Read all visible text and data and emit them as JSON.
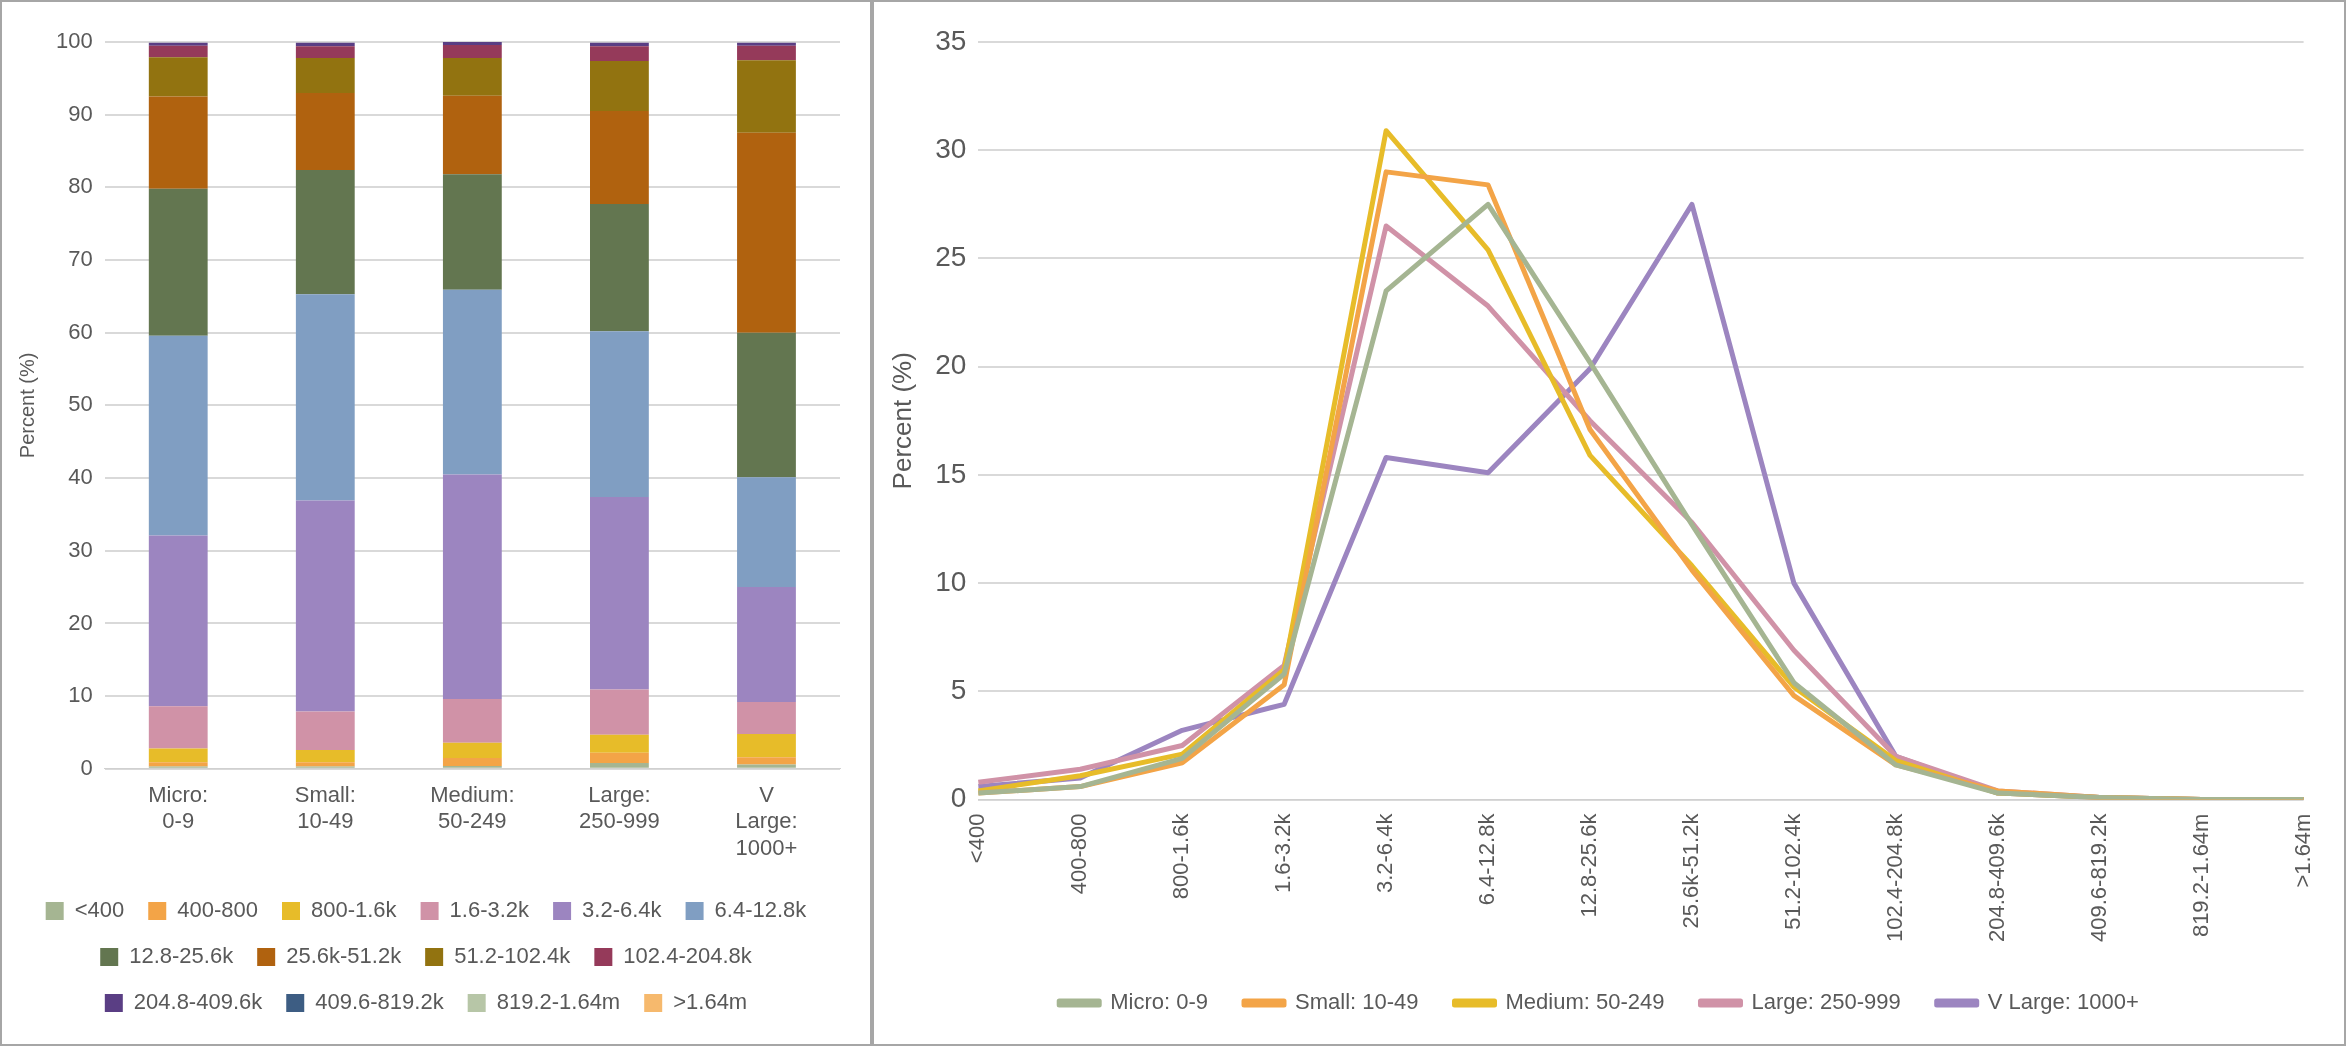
{
  "chart_data": [
    {
      "type": "bar",
      "stacked": true,
      "ylabel": "Percent (%)",
      "categories": [
        "Micro: 0-9",
        "Small: 10-49",
        "Medium: 50-249",
        "Large: 250-999",
        "V Large: 1000+"
      ],
      "ylim": [
        0,
        100
      ],
      "yticks": [
        0,
        10,
        20,
        30,
        40,
        50,
        60,
        70,
        80,
        90,
        100
      ],
      "grid": "y",
      "legend": "bottom",
      "series": [
        {
          "name": "<400",
          "color": "#a5b592",
          "values": [
            0.3,
            0.3,
            0.4,
            0.8,
            0.6
          ]
        },
        {
          "name": "400-800",
          "color": "#f3a447",
          "values": [
            0.6,
            0.6,
            1.1,
            1.4,
            1.0
          ]
        },
        {
          "name": "800-1.6k",
          "color": "#e7bc29",
          "values": [
            1.9,
            1.7,
            2.1,
            2.5,
            3.2
          ]
        },
        {
          "name": "1.6-3.2k",
          "color": "#d092a7",
          "values": [
            5.8,
            5.3,
            6.0,
            6.2,
            4.4
          ]
        },
        {
          "name": "3.2-6.4k",
          "color": "#9c85c0",
          "values": [
            23.5,
            29.0,
            30.9,
            26.5,
            15.8
          ]
        },
        {
          "name": "6.4-12.8k",
          "color": "#809ec2",
          "values": [
            27.5,
            28.4,
            25.4,
            22.8,
            15.1
          ]
        },
        {
          "name": "12.8-25.6k",
          "color": "#637650",
          "values": [
            20.2,
            17.1,
            15.9,
            17.5,
            19.9
          ]
        },
        {
          "name": "25.6k-51.2k",
          "color": "#b0620f",
          "values": [
            12.7,
            10.6,
            10.8,
            12.8,
            27.5
          ]
        },
        {
          "name": "51.2-102.4k",
          "color": "#927310",
          "values": [
            5.4,
            4.8,
            5.2,
            6.9,
            10.0
          ]
        },
        {
          "name": "102.4-204.8k",
          "color": "#953a5a",
          "values": [
            1.6,
            1.6,
            1.8,
            2.0,
            2.0
          ]
        },
        {
          "name": "204.8-409.6k",
          "color": "#5a3e84",
          "values": [
            0.4,
            0.5,
            0.4,
            0.5,
            0.4
          ]
        },
        {
          "name": "409.6-819.2k",
          "color": "#3d5d83",
          "values": [
            0,
            0,
            0,
            0,
            0
          ]
        },
        {
          "name": "819.2-1.64m",
          "color": "#b7c6a7",
          "values": [
            0,
            0,
            0,
            0,
            0
          ]
        },
        {
          "name": ">1.64m",
          "color": "#f6b96d",
          "values": [
            0,
            0,
            0,
            0,
            0
          ]
        }
      ]
    },
    {
      "type": "line",
      "ylabel": "Percent (%)",
      "categories": [
        "<400",
        "400-800",
        "800-1.6k",
        "1.6-3.2k",
        "3.2-6.4k",
        "6.4-12.8k",
        "12.8-25.6k",
        "25.6k-51.2k",
        "51.2-102.4k",
        "102.4-204.8k",
        "204.8-409.6k",
        "409.6-819.2k",
        "819.2-1.64m",
        ">1.64m"
      ],
      "ylim": [
        0,
        35
      ],
      "yticks": [
        0,
        5,
        10,
        15,
        20,
        25,
        30,
        35
      ],
      "grid": "y",
      "legend": "bottom",
      "series": [
        {
          "name": "Micro: 0-9",
          "color": "#a5b592",
          "values": [
            0.3,
            0.6,
            1.9,
            5.8,
            23.5,
            27.5,
            20.2,
            12.7,
            5.4,
            1.6,
            0.3,
            0.1,
            0,
            0
          ]
        },
        {
          "name": "Small: 10-49",
          "color": "#f3a447",
          "values": [
            0.3,
            0.6,
            1.7,
            5.3,
            29.0,
            28.4,
            17.1,
            10.6,
            4.8,
            1.6,
            0.4,
            0.1,
            0,
            0
          ]
        },
        {
          "name": "Medium: 50-249",
          "color": "#e7bc29",
          "values": [
            0.4,
            1.1,
            2.1,
            6.0,
            30.9,
            25.4,
            15.9,
            10.8,
            5.2,
            1.8,
            0.3,
            0.1,
            0,
            0
          ]
        },
        {
          "name": "Large: 250-999",
          "color": "#d092a7",
          "values": [
            0.8,
            1.4,
            2.5,
            6.2,
            26.5,
            22.8,
            17.5,
            12.8,
            6.9,
            2.0,
            0.4,
            0.1,
            0,
            0
          ]
        },
        {
          "name": "V Large: 1000+",
          "color": "#9c85c0",
          "values": [
            0.6,
            1.0,
            3.2,
            4.4,
            15.8,
            15.1,
            19.9,
            27.5,
            10.0,
            2.0,
            0.3,
            0.1,
            0,
            0
          ]
        }
      ]
    }
  ]
}
